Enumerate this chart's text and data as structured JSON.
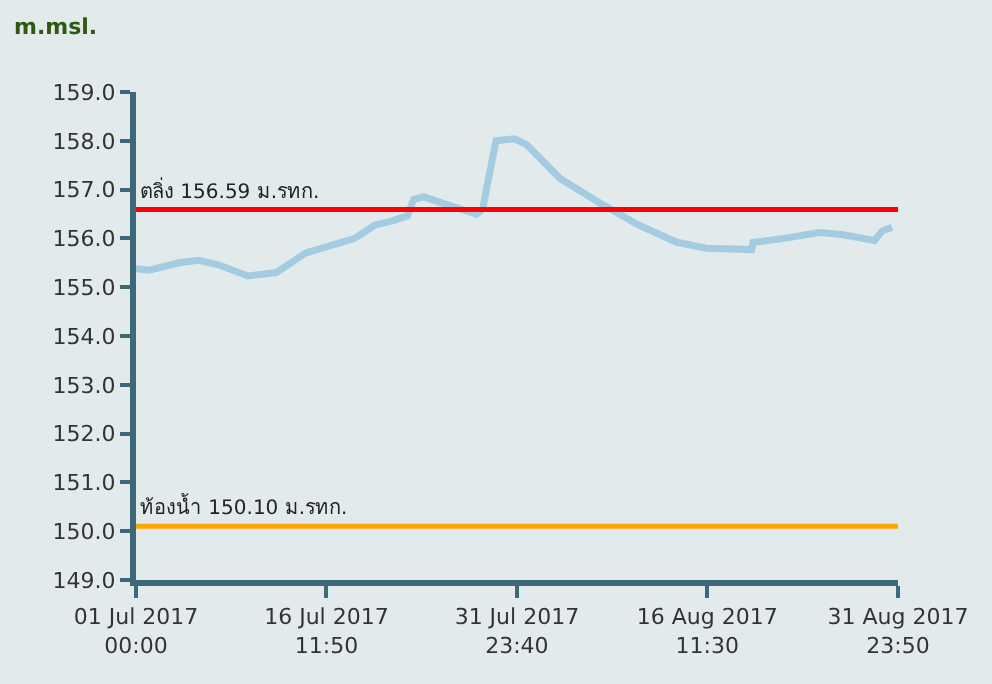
{
  "chart_data": {
    "type": "line",
    "ylabel": "m.msl.",
    "x": [
      "2017-07-01T00:00",
      "2017-07-02T02:00",
      "2017-07-04T12:00",
      "2017-07-06T02:00",
      "2017-07-07T17:00",
      "2017-07-10T02:00",
      "2017-07-12T10:00",
      "2017-07-14T19:00",
      "2017-07-17T05:00",
      "2017-07-18T19:00",
      "2017-07-20T10:00",
      "2017-07-21T17:00",
      "2017-07-23T02:00",
      "2017-07-23T14:00",
      "2017-07-24T10:00",
      "2017-07-26T19:00",
      "2017-07-28T17:00",
      "2017-07-29T05:00",
      "2017-07-29T14:00",
      "2017-07-30T07:00",
      "2017-07-31T19:00",
      "2017-08-01T19:00",
      "2017-08-04T12:00",
      "2017-08-07T17:00",
      "2017-08-10T22:00",
      "2017-08-14T00:00",
      "2017-08-16T10:00",
      "2017-08-20T02:00",
      "2017-08-20T05:00",
      "2017-08-22T17:00",
      "2017-08-25T14:00",
      "2017-08-27T10:00",
      "2017-08-30T02:00",
      "2017-08-30T17:00",
      "2017-08-31T12:00"
    ],
    "series": [
      {
        "color": "#a3cbe2",
        "values": [
          155.38,
          155.35,
          155.5,
          155.55,
          155.46,
          155.23,
          155.3,
          155.7,
          155.88,
          156.0,
          156.27,
          156.35,
          156.46,
          156.8,
          156.85,
          156.65,
          156.5,
          156.6,
          157.1,
          158.0,
          158.04,
          157.92,
          157.23,
          156.73,
          156.27,
          155.92,
          155.8,
          155.77,
          155.92,
          156.0,
          156.12,
          156.08,
          155.96,
          156.15,
          156.23
        ]
      }
    ],
    "xlim": [
      "2017-07-01T00:00",
      "2017-08-31T23:50"
    ],
    "xticks": [
      {
        "value": "2017-07-01T00:00",
        "label": "01 Jul 2017\n00:00"
      },
      {
        "value": "2017-07-16T11:50",
        "label": "16 Jul 2017\n11:50"
      },
      {
        "value": "2017-07-31T23:40",
        "label": "31 Jul 2017\n23:40"
      },
      {
        "value": "2017-08-16T11:30",
        "label": "16 Aug 2017\n11:30"
      },
      {
        "value": "2017-08-31T23:50",
        "label": "31 Aug 2017\n23:50"
      }
    ],
    "ylim": [
      149,
      159
    ],
    "yticks": [
      {
        "value": 149,
        "label": "149.0"
      },
      {
        "value": 150,
        "label": "150.0"
      },
      {
        "value": 151,
        "label": "151.0"
      },
      {
        "value": 152,
        "label": "152.0"
      },
      {
        "value": 153,
        "label": "153.0"
      },
      {
        "value": 154,
        "label": "154.0"
      },
      {
        "value": 155,
        "label": "155.0"
      },
      {
        "value": 156,
        "label": "156.0"
      },
      {
        "value": 157,
        "label": "157.0"
      },
      {
        "value": 158,
        "label": "158.0"
      },
      {
        "value": 159,
        "label": "159.0"
      }
    ],
    "ref_lines": [
      {
        "axis": "y",
        "value": 156.59,
        "label": "ตลิ่ง 156.59 ม.รทก.",
        "color": "#ff0000"
      },
      {
        "axis": "y",
        "value": 150.1,
        "label": "ท้องน้ำ 150.10 ม.รทก.",
        "color": "#ffa500"
      }
    ],
    "grid": false,
    "marker": "none",
    "line_style": "solid"
  }
}
